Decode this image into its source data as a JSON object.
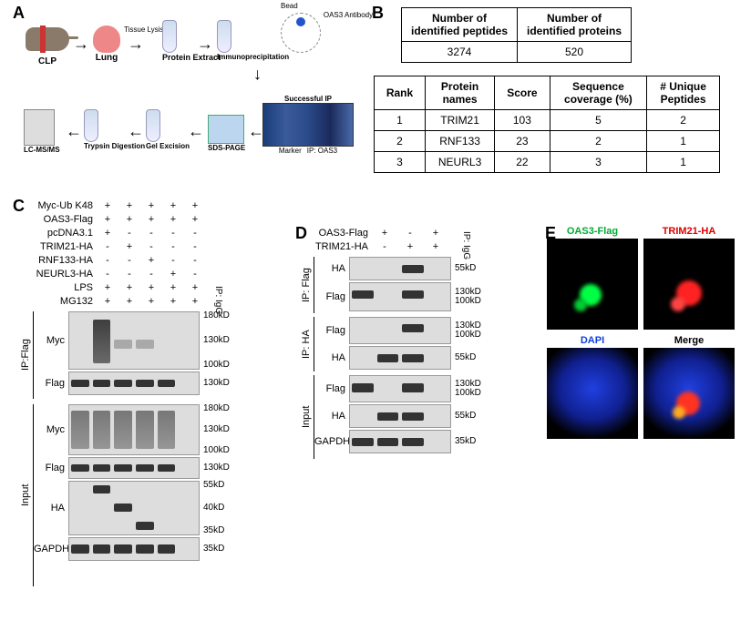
{
  "panels": {
    "A": "A",
    "B": "B",
    "C": "C",
    "D": "D",
    "E": "E"
  },
  "panelA": {
    "items": {
      "clp": "CLP",
      "lung": "Lung",
      "tissue_lysis": "Tissue Lysis",
      "protein_extract": "Protein Extract",
      "ip": "Immunoprecipitation",
      "bead": "Bead",
      "oas3_ab": "OAS3 Antibody",
      "successful_ip": "Successful IP",
      "sds": "SDS-PAGE",
      "marker": "Marker",
      "ip_oas3": "IP: OAS3",
      "gel_exc": "Gel Excision",
      "trypsin": "Trypsin Digestion",
      "lcms": "LC-MS/MS"
    }
  },
  "panelB": {
    "table1": {
      "headers": [
        "Number of\nidentified peptides",
        "Number of\nidentified proteins"
      ],
      "row": [
        "3274",
        "520"
      ]
    },
    "table2": {
      "headers": [
        "Rank",
        "Protein\nnames",
        "Score",
        "Sequence\ncoverage (%)",
        "# Unique\nPeptides"
      ],
      "rows": [
        [
          "1",
          "TRIM21",
          "103",
          "5",
          "2"
        ],
        [
          "2",
          "RNF133",
          "23",
          "2",
          "1"
        ],
        [
          "3",
          "NEURL3",
          "22",
          "3",
          "1"
        ]
      ]
    }
  },
  "panelC": {
    "conditions": [
      {
        "label": "Myc-Ub K48",
        "vals": [
          "+",
          "+",
          "+",
          "+",
          "+"
        ]
      },
      {
        "label": "OAS3-Flag",
        "vals": [
          "+",
          "+",
          "+",
          "+",
          "+"
        ]
      },
      {
        "label": "pcDNA3.1",
        "vals": [
          "+",
          "-",
          "-",
          "-",
          "-"
        ]
      },
      {
        "label": "TRIM21-HA",
        "vals": [
          "-",
          "+",
          "-",
          "-",
          "-"
        ]
      },
      {
        "label": "RNF133-HA",
        "vals": [
          "-",
          "-",
          "+",
          "-",
          "-"
        ]
      },
      {
        "label": "NEURL3-HA",
        "vals": [
          "-",
          "-",
          "-",
          "+",
          "-"
        ]
      },
      {
        "label": "LPS",
        "vals": [
          "+",
          "+",
          "+",
          "+",
          "+"
        ]
      },
      {
        "label": "MG132",
        "vals": [
          "+",
          "+",
          "+",
          "+",
          "+"
        ]
      }
    ],
    "igG": "IP: IgG",
    "groups": {
      "ipflag": "IP:Flag",
      "input": "Input"
    },
    "blots": {
      "myc": "Myc",
      "flag": "Flag",
      "ha": "HA",
      "gapdh": "GAPDH"
    },
    "mw": {
      "180": "180kD",
      "130": "130kD",
      "100": "100kD",
      "55": "55kD",
      "40": "40kD",
      "35": "35kD"
    }
  },
  "panelD": {
    "conditions": [
      {
        "label": "OAS3-Flag",
        "vals": [
          "+",
          "-",
          "+"
        ]
      },
      {
        "label": "TRIM21-HA",
        "vals": [
          "-",
          "+",
          "+"
        ]
      }
    ],
    "igG": "IP: IgG",
    "groups": {
      "ipflag": "IP: Flag",
      "ipha": "IP: HA",
      "input": "Input"
    },
    "blots": {
      "ha": "HA",
      "flag": "Flag",
      "gapdh": "GAPDH"
    },
    "mw": {
      "130": "130kD",
      "100": "100kD",
      "55": "55kD",
      "35": "35kD"
    }
  },
  "panelE": {
    "titles": {
      "green": "OAS3-Flag",
      "red": "TRIM21-HA",
      "blue": "DAPI",
      "merge": "Merge"
    },
    "colors": {
      "green": "#00ff44",
      "red": "#ff2222",
      "blue": "#1030d0"
    }
  }
}
